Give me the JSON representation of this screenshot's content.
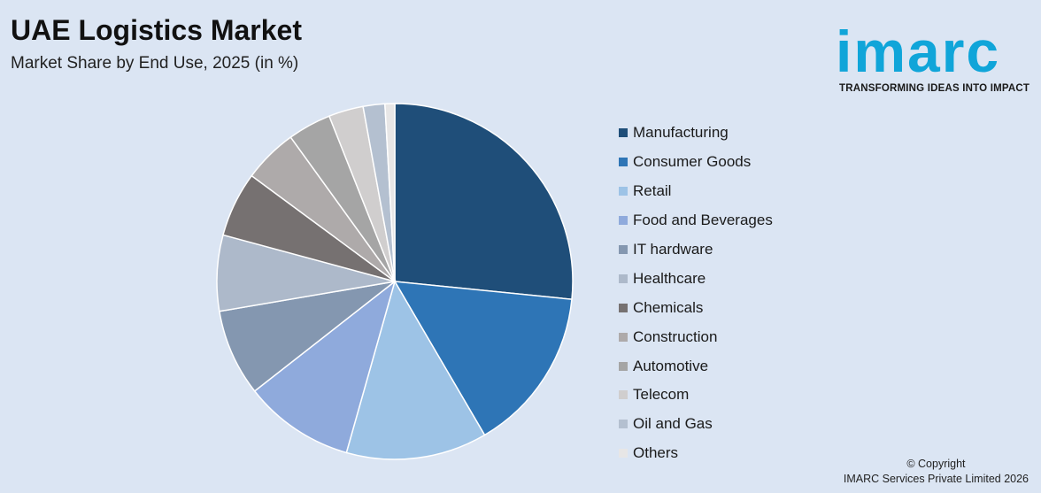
{
  "header": {
    "title": "UAE Logistics Market",
    "subtitle": "Market Share by End Use, 2025 (in %)"
  },
  "logo": {
    "wordmark": "imarc",
    "tagline": "TRANSFORMING IDEAS INTO IMPACT",
    "color": "#10a5d9"
  },
  "footer": {
    "copyright_line1": "© Copyright",
    "copyright_line2": "IMARC Services Private Limited 2026"
  },
  "chart_data": {
    "type": "pie",
    "title": "UAE Logistics Market",
    "subtitle": "Market Share by End Use, 2025 (in %)",
    "legend_placement": "right",
    "categories": [
      "Manufacturing",
      "Consumer Goods",
      "Retail",
      "Food and Beverages",
      "IT hardware",
      "Healthcare",
      "Chemicals",
      "Construction",
      "Automotive",
      "Telecom",
      "Oil and Gas",
      "Others"
    ],
    "values": [
      27.0,
      15.2,
      13.0,
      10.2,
      8.0,
      7.0,
      6.0,
      5.0,
      4.0,
      3.2,
      2.0,
      0.9
    ],
    "colors": [
      "#1f4e79",
      "#2e75b6",
      "#9dc3e6",
      "#8faadc",
      "#8497b0",
      "#adb9ca",
      "#767171",
      "#aeaaaa",
      "#a5a5a5",
      "#d0cece",
      "#b4c0d0",
      "#e7e6e6"
    ]
  }
}
